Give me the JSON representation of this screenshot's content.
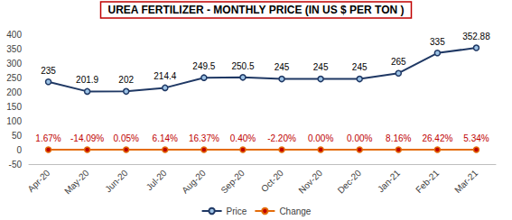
{
  "chart_data": {
    "type": "line",
    "title": "UREA FERTILIZER - MONTHLY PRICE (IN US $ PER TON )",
    "categories": [
      "Apr-20",
      "May-20",
      "Jun-20",
      "Jul-20",
      "Aug-20",
      "Sep-20",
      "Oct-20",
      "Nov-20",
      "Dec-20",
      "Jan-21",
      "Feb-21",
      "Mar-21"
    ],
    "series": [
      {
        "name": "Price",
        "color": "#1f3864",
        "marker": "circle",
        "values": [
          235,
          201.9,
          202,
          214.4,
          249.5,
          250.5,
          245,
          245,
          245,
          265,
          335,
          352.88
        ]
      },
      {
        "name": "Change",
        "color": "#e46c0a",
        "marker": "circle",
        "values": [
          0.0167,
          -0.1409,
          0.0005,
          0.0614,
          0.1637,
          0.004,
          -0.022,
          0,
          0,
          0.0816,
          0.2642,
          0.0534
        ],
        "value_labels": [
          "1.67%",
          "-14.09%",
          "0.05%",
          "6.14%",
          "16.37%",
          "0.40%",
          "-2.20%",
          "0.00%",
          "0.00%",
          "8.16%",
          "26.42%",
          "5.34%"
        ]
      }
    ],
    "ylim": [
      -50,
      400
    ],
    "yticks": [
      -50,
      0,
      50,
      100,
      150,
      200,
      250,
      300,
      350,
      400
    ],
    "grid": false,
    "legend": "bottom",
    "data_labels": true
  }
}
